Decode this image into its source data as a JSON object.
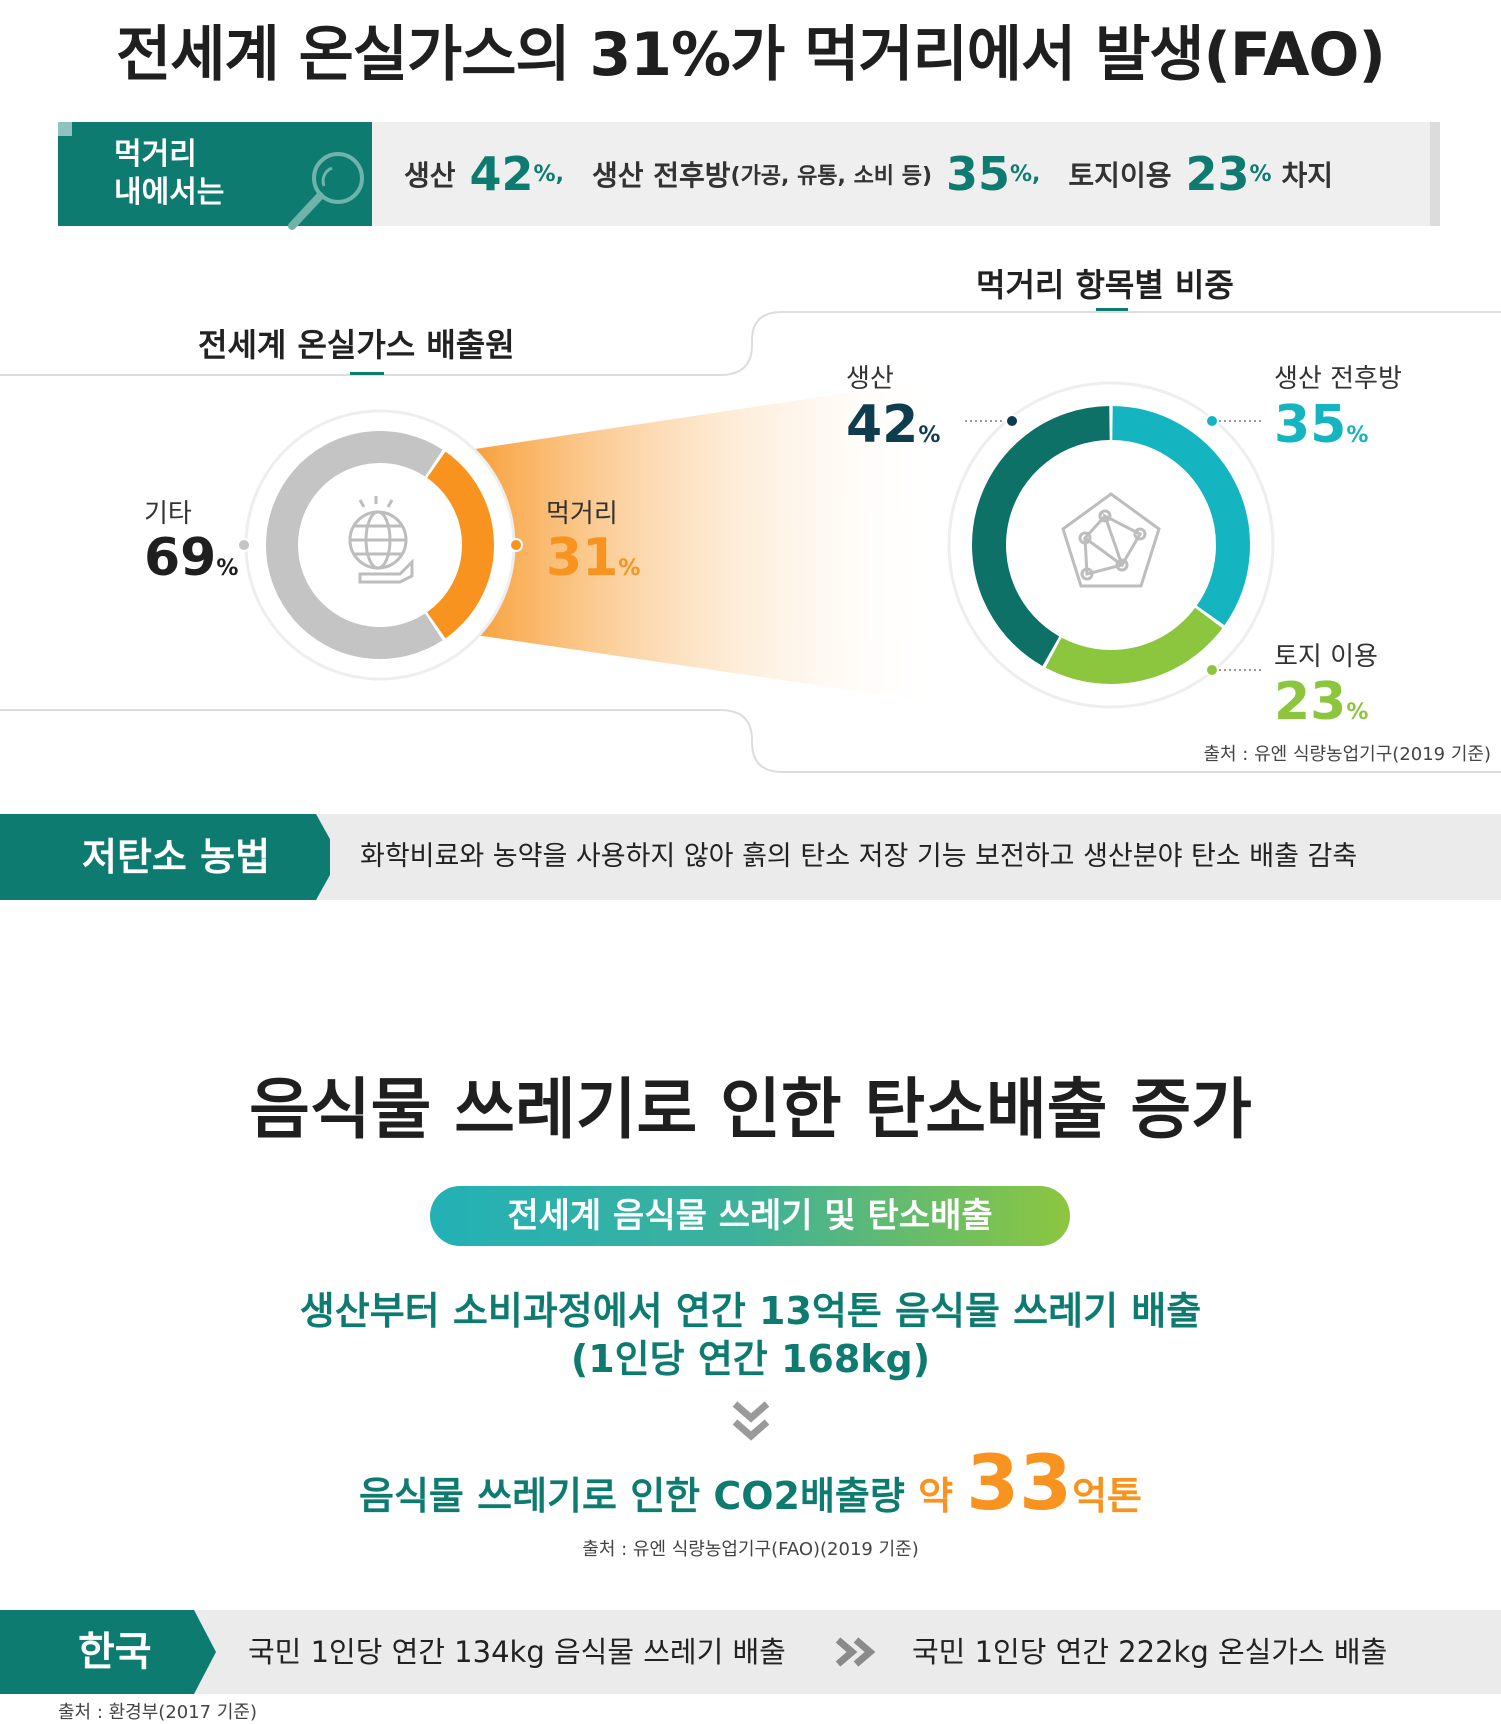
{
  "main_title": "전세계 온실가스의 31%가 먹거리에서 발생(FAO)",
  "banner1": {
    "label": "먹거리\n내에서는",
    "items": [
      {
        "name": "생산",
        "value": "42",
        "unit": "%,"
      },
      {
        "name": "생산 전후방",
        "detail": "(가공, 유통, 소비 등)",
        "value": "35",
        "unit": "%,"
      },
      {
        "name": "토지이용",
        "value": "23",
        "unit": "%",
        "suffix": "차지"
      }
    ]
  },
  "left_chart": {
    "title": "전세계 온실가스 배출원",
    "segments": [
      {
        "label": "기타",
        "value": "69",
        "unit": "%",
        "percent": 69,
        "color": "#c4c4c4"
      },
      {
        "label": "먹거리",
        "value": "31",
        "unit": "%",
        "percent": 31,
        "color": "#f7931e"
      }
    ]
  },
  "right_chart": {
    "title": "먹거리 항목별 비중",
    "segments": [
      {
        "label": "생산",
        "value": "42",
        "unit": "%",
        "percent": 42,
        "color": "#0e7168"
      },
      {
        "label": "생산 전후방",
        "value": "35",
        "unit": "%",
        "percent": 35,
        "color": "#14b4c0"
      },
      {
        "label": "토지 이용",
        "value": "23",
        "unit": "%",
        "percent": 23,
        "color": "#8cc63f"
      }
    ],
    "source": "출처 : 유엔 식량농업기구(2019 기준)"
  },
  "low_carbon": {
    "label": "저탄소 농법",
    "text": "화학비료와 농약을 사용하지 않아 흙의 탄소 저장 기능 보전하고 생산분야 탄소 배출 감축"
  },
  "section2": {
    "title": "음식물 쓰레기로 인한 탄소배출 증가",
    "pill": "전세계 음식물 쓰레기 및 탄소배출",
    "line1": "생산부터 소비과정에서 연간 13억톤 음식물 쓰레기 배출",
    "line2": "(1인당 연간 168kg)",
    "co2_prefix": "음식물 쓰레기로 인한 CO2배출량",
    "co2_about": "약",
    "co2_value": "33",
    "co2_unit": "억톤",
    "source": "출처 : 유엔 식량농업기구(FAO)(2019 기준)"
  },
  "korea": {
    "label": "한국",
    "text1": "국민 1인당 연간 134kg 음식물 쓰레기 배출",
    "text2": "국민 1인당 연간 222kg 온실가스 배출",
    "source": "출처 : 환경부(2017 기준)"
  },
  "colors": {
    "teal": "#0e7b70",
    "orange": "#f7931e",
    "cyan": "#14b4c0",
    "green": "#8cc63f",
    "grey": "#c4c4c4"
  }
}
